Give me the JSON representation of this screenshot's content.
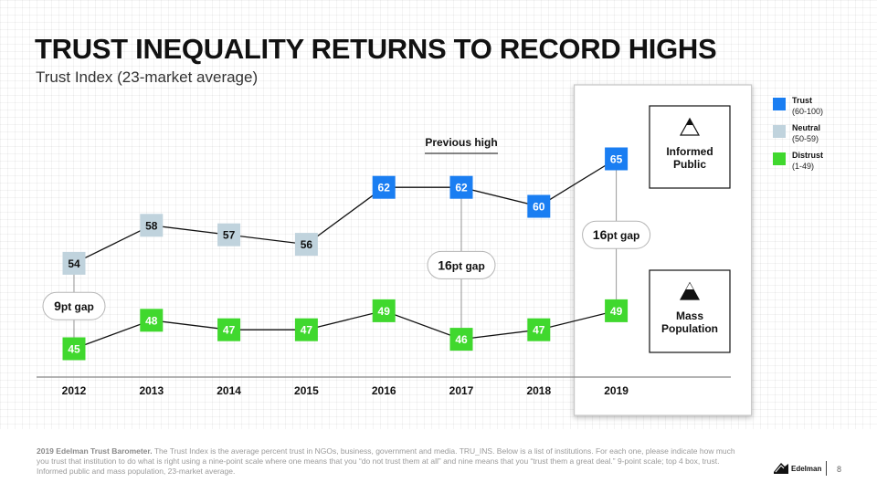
{
  "title": "TRUST INEQUALITY RETURNS TO RECORD HIGHS",
  "subtitle": "Trust Index (23-market average)",
  "colors": {
    "trust": "#1a7ef2",
    "neutral": "#c0d3dd",
    "distrust": "#40d82e",
    "line": "#111111"
  },
  "legend": [
    {
      "label": "Trust",
      "range": "(60-100)",
      "color": "#1a7ef2"
    },
    {
      "label": "Neutral",
      "range": "(50-59)",
      "color": "#c0d3dd"
    },
    {
      "label": "Distrust",
      "range": "(1-49)",
      "color": "#40d82e"
    }
  ],
  "annotations": {
    "previous_high": "Previous high",
    "informed_public": "Informed Public",
    "mass_population": "Mass Population",
    "gaps": [
      {
        "year": "2012",
        "num": "9",
        "suffix": "pt gap"
      },
      {
        "year": "2017",
        "num": "16",
        "suffix": "pt gap"
      },
      {
        "year": "2019",
        "num": "16",
        "suffix": "pt gap"
      }
    ]
  },
  "chart_data": {
    "type": "line",
    "categories": [
      "2012",
      "2013",
      "2014",
      "2015",
      "2016",
      "2017",
      "2018",
      "2019"
    ],
    "series": [
      {
        "name": "Informed Public",
        "values": [
          54,
          58,
          57,
          56,
          62,
          62,
          60,
          65
        ]
      },
      {
        "name": "Mass Population",
        "values": [
          45,
          48,
          47,
          47,
          49,
          46,
          47,
          49
        ]
      }
    ],
    "highlight": "2019",
    "grid": true
  },
  "footnote": {
    "bold": "2019 Edelman Trust Barometer.",
    "text": " The Trust Index is the average percent trust in NGOs, business, government and media. TRU_INS. Below is a list of institutions. For each one, please indicate how much you trust that institution to do what is right using a nine-point scale where one means that you “do not trust them at all” and nine means that you “trust them a great deal.” 9-point scale; top 4 box, trust. Informed public and mass population, 23-market average."
  },
  "brand": "Edelman",
  "page_number": "8"
}
